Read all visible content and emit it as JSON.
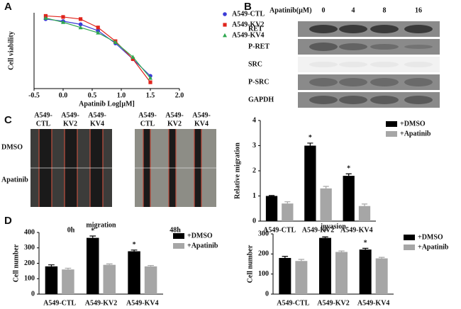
{
  "panels": [
    "A",
    "B",
    "C",
    "D"
  ],
  "blot": {
    "header": "Apatinib(μM)",
    "doses": [
      "0",
      "4",
      "8",
      "16"
    ],
    "rows": [
      "RET",
      "P-RET",
      "SRC",
      "P-SRC",
      "GAPDH"
    ]
  },
  "scratch": {
    "columns": [
      [
        "A549-",
        "CTL"
      ],
      [
        "A549-",
        "KV2"
      ],
      [
        "A549-",
        "KV4"
      ]
    ],
    "rows": [
      "DMSO",
      "Apatinib"
    ],
    "times": [
      "0h",
      "48h"
    ]
  },
  "chart_data": [
    {
      "type": "line",
      "x_label": "Apatinib Log[μM]",
      "y_label": "Cell viability",
      "x": [
        -0.3,
        0,
        0.3,
        0.6,
        0.9,
        1.2,
        1.5
      ],
      "series": [
        {
          "name": "A549-CTL",
          "color": "#3b3bd6",
          "values": [
            96,
            94,
            91,
            85,
            73,
            58,
            42
          ]
        },
        {
          "name": "A549-KV2",
          "color": "#e0241c",
          "values": [
            99,
            98,
            96,
            88,
            75,
            58,
            36
          ]
        },
        {
          "name": "A549-KV4",
          "color": "#2fa84f",
          "values": [
            97,
            93,
            88,
            83,
            74,
            60,
            40
          ]
        }
      ],
      "xlim": [
        -0.5,
        2.0
      ],
      "ylim": [
        30,
        102
      ],
      "xticks": [
        -0.5,
        {
          "value": 0,
          "label": "0.0"
        },
        0.5,
        {
          "value": 1,
          "label": "1.0"
        },
        1.5,
        {
          "value": 2,
          "label": "2.0"
        }
      ],
      "legend": "right"
    },
    {
      "type": "bar",
      "y_label": "Relative migration",
      "categories": [
        "A549-CTL",
        "A549-KV2",
        "A549-KV4"
      ],
      "series": [
        {
          "name": "+DMSO",
          "color": "#000000",
          "values": [
            1.0,
            3.0,
            1.8
          ],
          "errors": [
            0.02,
            0.1,
            0.08
          ]
        },
        {
          "name": "+Apatinib",
          "color": "#a6a6a6",
          "values": [
            0.7,
            1.3,
            0.6
          ],
          "errors": [
            0.07,
            0.08,
            0.08
          ]
        }
      ],
      "annotations": [
        {
          "text": "*",
          "x": "A549-KV2"
        },
        {
          "text": "*",
          "x": "A549-KV4"
        }
      ],
      "ylim": [
        0,
        4
      ],
      "yticks": [
        0,
        1,
        2,
        3,
        4
      ],
      "legend": "right"
    },
    {
      "type": "bar",
      "title": "migration",
      "y_label": "Cell number",
      "categories": [
        "A549-CTL",
        "A549-KV2",
        "A549-KV4"
      ],
      "series": [
        {
          "name": "+DMSO",
          "color": "#000000",
          "values": [
            180,
            365,
            278
          ],
          "errors": [
            10,
            12,
            8
          ]
        },
        {
          "name": "+Apatinib",
          "color": "#a6a6a6",
          "values": [
            160,
            190,
            180
          ],
          "errors": [
            8,
            6,
            6
          ]
        }
      ],
      "annotations": [
        {
          "text": "*",
          "x": "A549-KV2"
        },
        {
          "text": "*",
          "x": "A549-KV4"
        }
      ],
      "ylim": [
        0,
        400
      ],
      "yticks": [
        0,
        100,
        200,
        300,
        400
      ],
      "legend": "right"
    },
    {
      "type": "bar",
      "title": "invasion",
      "y_label": "Cell number",
      "categories": [
        "A549-CTL",
        "A549-KV2",
        "A549-KV4"
      ],
      "series": [
        {
          "name": "+DMSO",
          "color": "#000000",
          "values": [
            180,
            280,
            222
          ],
          "errors": [
            8,
            5,
            6
          ]
        },
        {
          "name": "+Apatinib",
          "color": "#a6a6a6",
          "values": [
            165,
            210,
            178
          ],
          "errors": [
            8,
            5,
            5
          ]
        }
      ],
      "annotations": [
        {
          "text": "*",
          "x": "A549-KV2"
        },
        {
          "text": "*",
          "x": "A549-KV4"
        }
      ],
      "ylim": [
        0,
        300
      ],
      "yticks": [
        0,
        100,
        200,
        300
      ],
      "legend": "right"
    }
  ]
}
